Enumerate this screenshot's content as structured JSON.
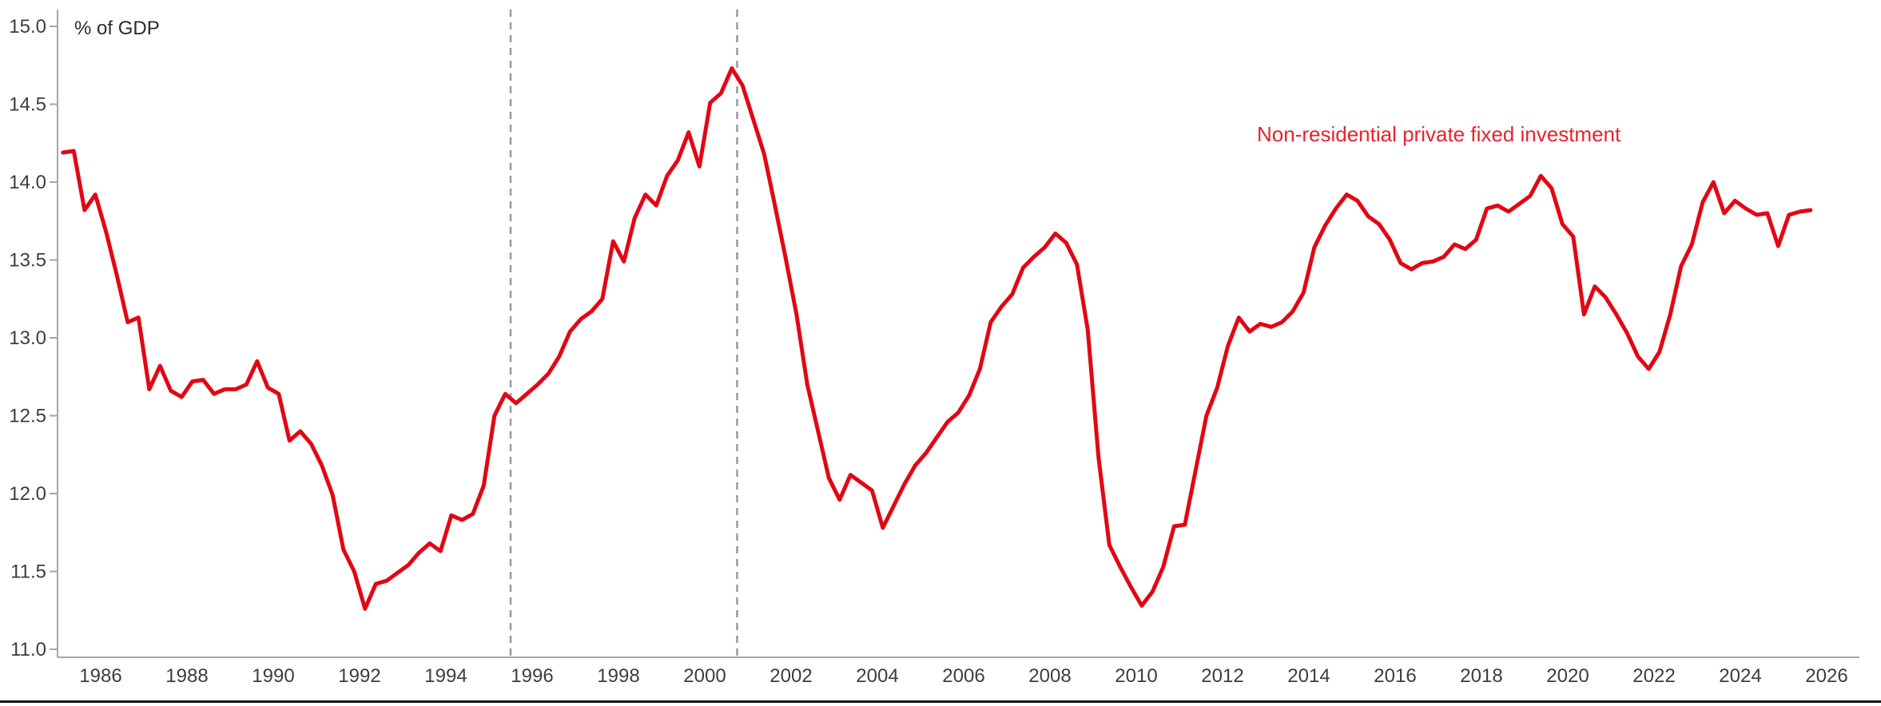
{
  "page": {
    "unit_label": "% of GDP",
    "series_label": "Non-residential private fixed investment"
  },
  "chart_data": {
    "type": "line",
    "title": "",
    "xlabel": "",
    "ylabel": "% of GDP",
    "legend": [
      "Non-residential private fixed investment"
    ],
    "legend_position": "inline-top-right",
    "grid": "off",
    "ylim": [
      11.0,
      15.0
    ],
    "xlim": [
      1985.0,
      2026.75
    ],
    "y_ticks": [
      "15.0",
      "14.5",
      "14.0",
      "13.5",
      "13.0",
      "12.5",
      "12.0",
      "11.5",
      "11.0"
    ],
    "y_tick_values": [
      15.0,
      14.5,
      14.0,
      13.5,
      13.0,
      12.5,
      12.0,
      11.5,
      11.0
    ],
    "x_ticks": [
      1986,
      1988,
      1990,
      1992,
      1994,
      1996,
      1998,
      2000,
      2002,
      2004,
      2006,
      2008,
      2010,
      2012,
      2014,
      2016,
      2018,
      2020,
      2022,
      2024,
      2026
    ],
    "dashed_vlines_x": [
      1995.5,
      2000.75
    ],
    "series": [
      {
        "name": "Non-residential private fixed investment",
        "x_start": 1985.125,
        "x_step": 0.25,
        "frequency": "quarterly",
        "values": [
          14.19,
          14.2,
          13.82,
          13.92,
          13.68,
          13.4,
          13.1,
          13.13,
          12.67,
          12.82,
          12.66,
          12.62,
          12.72,
          12.73,
          12.64,
          12.67,
          12.67,
          12.7,
          12.85,
          12.68,
          12.64,
          12.34,
          12.4,
          12.32,
          12.18,
          11.99,
          11.64,
          11.5,
          11.26,
          11.42,
          11.44,
          11.49,
          11.54,
          11.62,
          11.68,
          11.63,
          11.86,
          11.83,
          11.87,
          12.05,
          12.5,
          12.64,
          12.58,
          12.64,
          12.7,
          12.77,
          12.88,
          13.04,
          13.12,
          13.17,
          13.25,
          13.62,
          13.49,
          13.77,
          13.92,
          13.85,
          14.04,
          14.14,
          14.32,
          14.1,
          14.51,
          14.57,
          14.73,
          14.62,
          14.4,
          14.18,
          13.85,
          13.51,
          13.15,
          12.7,
          12.4,
          12.1,
          11.96,
          12.12,
          12.07,
          12.02,
          11.78,
          11.92,
          12.06,
          12.18,
          12.26,
          12.36,
          12.46,
          12.52,
          12.63,
          12.8,
          13.1,
          13.2,
          13.28,
          13.45,
          13.52,
          13.58,
          13.67,
          13.61,
          13.47,
          13.05,
          12.23,
          11.67,
          11.53,
          11.4,
          11.28,
          11.37,
          11.53,
          11.79,
          11.8,
          12.15,
          12.5,
          12.68,
          12.95,
          13.13,
          13.04,
          13.09,
          13.07,
          13.1,
          13.17,
          13.29,
          13.58,
          13.72,
          13.83,
          13.92,
          13.88,
          13.78,
          13.73,
          13.63,
          13.48,
          13.44,
          13.48,
          13.49,
          13.52,
          13.6,
          13.57,
          13.63,
          13.83,
          13.85,
          13.81,
          13.86,
          13.91,
          14.04,
          13.96,
          13.73,
          13.65,
          13.15,
          13.33,
          13.26,
          13.15,
          13.03,
          12.88,
          12.8,
          12.91,
          13.15,
          13.46,
          13.6,
          13.87,
          14.0,
          13.8,
          13.88,
          13.83,
          13.79,
          13.8,
          13.59,
          13.79,
          13.81,
          13.82
        ]
      }
    ],
    "colors": {
      "line": "#e20714",
      "series_label": "#e8222e",
      "axis": "#a6a6a6",
      "dashed_line": "#999999",
      "tick_text": "#3d3d3d",
      "unit_text": "#2b2b2b",
      "divider": "#141414"
    }
  }
}
